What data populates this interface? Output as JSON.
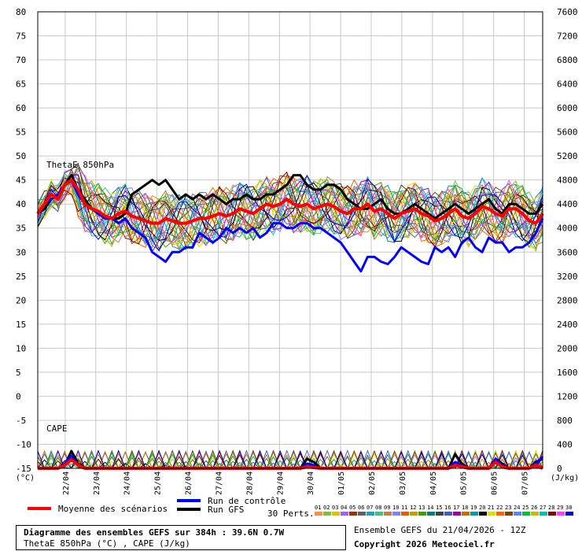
{
  "chart_data": {
    "type": "line",
    "left_axis_unit": "(°C)",
    "right_axis_unit": "(J/kg)",
    "left_ticks": [
      -15,
      -10,
      -5,
      0,
      5,
      10,
      15,
      20,
      25,
      30,
      35,
      40,
      45,
      50,
      55,
      60,
      65,
      70,
      75,
      80
    ],
    "right_ticks": [
      0,
      400,
      800,
      1200,
      1600,
      2000,
      2400,
      2800,
      3200,
      3600,
      4000,
      4400,
      4800,
      5200,
      5600,
      6000,
      6400,
      6800,
      7200,
      7600
    ],
    "ylim_left": [
      -15,
      80
    ],
    "ylim_right": [
      0,
      7600
    ],
    "x_ticks": [
      "22/04",
      "23/04",
      "24/04",
      "25/04",
      "26/04",
      "27/04",
      "28/04",
      "29/04",
      "30/04",
      "01/05",
      "02/05",
      "03/05",
      "04/05",
      "05/05",
      "06/05",
      "07/05"
    ],
    "thetae_label": "ThetaE 850hPa",
    "cape_label": "CAPE",
    "thetae_series": [
      {
        "name": "Moyenne des scénarios",
        "color": "#ff0000",
        "values": [
          38,
          40,
          42,
          41,
          44,
          45,
          43,
          40,
          39,
          38.5,
          37.5,
          37,
          38,
          38.5,
          37.5,
          37,
          36.5,
          36,
          36,
          37,
          36.5,
          36,
          36,
          36.5,
          37,
          37,
          37.5,
          38,
          37.5,
          38,
          39,
          38.5,
          38,
          39,
          40,
          39.5,
          40,
          41,
          40,
          39.5,
          40,
          39,
          39.5,
          40,
          39.5,
          38.5,
          38,
          39,
          39,
          40,
          38.5,
          39,
          38,
          37,
          38,
          38.5,
          39,
          38,
          37.5,
          36.5,
          37,
          38,
          39,
          37.5,
          37,
          38,
          39.5,
          39,
          38,
          37.5,
          39,
          39,
          38,
          36.5,
          36,
          38
        ]
      },
      {
        "name": "Run de contrôle",
        "color": "#0000ff",
        "values": [
          38,
          40,
          41,
          42,
          44,
          45,
          42,
          40,
          39,
          38,
          37,
          37,
          36,
          37,
          35,
          34,
          33,
          30,
          29,
          28,
          30,
          30,
          31,
          31,
          34,
          33,
          32,
          33,
          35,
          34,
          35,
          34,
          35,
          33,
          34,
          36,
          36,
          35,
          35,
          36,
          36,
          35,
          35,
          34,
          33,
          32,
          30,
          28,
          26,
          29,
          29,
          28,
          27.5,
          29,
          31,
          30,
          29,
          28,
          27.5,
          31,
          30,
          31,
          29,
          32,
          33,
          31,
          30,
          33,
          32,
          32,
          30,
          31,
          31,
          32,
          34,
          37
        ]
      },
      {
        "name": "Run GFS",
        "color": "#000000",
        "values": [
          38,
          39,
          41,
          42,
          44,
          46,
          43,
          41,
          39,
          38,
          37,
          37,
          37,
          38,
          42,
          43,
          44,
          45,
          44,
          45,
          43,
          41,
          42,
          41,
          42,
          41,
          42,
          41,
          40,
          41,
          41,
          42,
          41,
          41,
          42,
          42,
          43,
          44,
          46,
          46,
          44,
          43,
          43,
          44,
          44,
          43,
          41,
          40,
          39,
          39,
          40,
          41,
          39,
          38,
          38,
          39,
          40,
          39,
          38,
          37,
          38,
          39,
          40,
          39,
          38,
          39,
          40,
          41,
          39,
          38,
          40,
          40,
          39,
          38,
          38,
          40
        ]
      }
    ],
    "cape_series": [
      {
        "name": "Moyenne des scénarios",
        "values": [
          0,
          0,
          0,
          0,
          40,
          110,
          40,
          0,
          0,
          0,
          0,
          0,
          0,
          0,
          0,
          0,
          0,
          0,
          0,
          0,
          0,
          0,
          0,
          0,
          0,
          0,
          0,
          0,
          0,
          0,
          0,
          0,
          0,
          0,
          0,
          0,
          0,
          0,
          0,
          0,
          20,
          10,
          0,
          0,
          0,
          0,
          0,
          0,
          0,
          0,
          0,
          0,
          0,
          0,
          0,
          0,
          0,
          0,
          0,
          0,
          0,
          0,
          40,
          20,
          0,
          0,
          0,
          0,
          80,
          20,
          0,
          0,
          0,
          0,
          40,
          0
        ]
      },
      {
        "name": "Run de contrôle",
        "values": [
          0,
          0,
          0,
          0,
          60,
          160,
          40,
          0,
          0,
          0,
          0,
          0,
          0,
          0,
          0,
          0,
          0,
          0,
          0,
          0,
          0,
          0,
          0,
          0,
          0,
          0,
          0,
          0,
          0,
          0,
          0,
          0,
          0,
          0,
          0,
          0,
          0,
          0,
          0,
          0,
          60,
          40,
          0,
          0,
          0,
          0,
          0,
          0,
          0,
          0,
          0,
          0,
          0,
          0,
          0,
          0,
          0,
          0,
          0,
          0,
          0,
          0,
          80,
          40,
          0,
          0,
          0,
          0,
          120,
          40,
          0,
          0,
          0,
          0,
          60,
          150
        ]
      },
      {
        "name": "Run GFS",
        "values": [
          0,
          0,
          0,
          0,
          40,
          220,
          60,
          0,
          0,
          0,
          0,
          0,
          0,
          0,
          0,
          0,
          0,
          0,
          0,
          0,
          0,
          0,
          0,
          0,
          0,
          0,
          0,
          0,
          0,
          0,
          0,
          0,
          0,
          0,
          0,
          0,
          0,
          0,
          0,
          0,
          120,
          80,
          0,
          0,
          0,
          0,
          0,
          0,
          0,
          0,
          0,
          0,
          0,
          0,
          0,
          0,
          0,
          0,
          0,
          0,
          0,
          0,
          180,
          60,
          0,
          0,
          0,
          0,
          120,
          60,
          0,
          0,
          0,
          0,
          80,
          120
        ]
      }
    ],
    "legend": {
      "mean": "Moyenne des scénarios",
      "control": "Run de contrôle",
      "gfs": "Run GFS",
      "perts": "30 Perts.",
      "pert_numbers": [
        "01",
        "02",
        "03",
        "04",
        "05",
        "06",
        "07",
        "08",
        "09",
        "10",
        "11",
        "12",
        "13",
        "14",
        "15",
        "16",
        "17",
        "18",
        "19",
        "20",
        "21",
        "22",
        "23",
        "24",
        "25",
        "26",
        "27",
        "28",
        "29",
        "30"
      ],
      "pert_colors": [
        "#ff8c40",
        "#80c040",
        "#e0c000",
        "#a060ff",
        "#a03000",
        "#606060",
        "#20a0c0",
        "#40c080",
        "#c08040",
        "#8080ff",
        "#e06000",
        "#c0a000",
        "#40a000",
        "#008080",
        "#404040",
        "#4060c0",
        "#a000a0",
        "#c07000",
        "#00a0a0",
        "#000000",
        "#e0e000",
        "#ff6000",
        "#804000",
        "#6080ff",
        "#00c040",
        "#c0c000",
        "#00c0c0",
        "#800000",
        "#ff40ff",
        "#0000c0"
      ]
    }
  },
  "footer": {
    "title": "Diagramme des ensembles GEFS sur 384h : 39.6N 0.7W",
    "subtitle": "ThetaE 850hPa (°C) , CAPE (J/kg)",
    "run_info": "Ensemble GEFS du 21/04/2026 - 12Z",
    "copyright": "Copyright 2026 Meteociel.fr"
  }
}
